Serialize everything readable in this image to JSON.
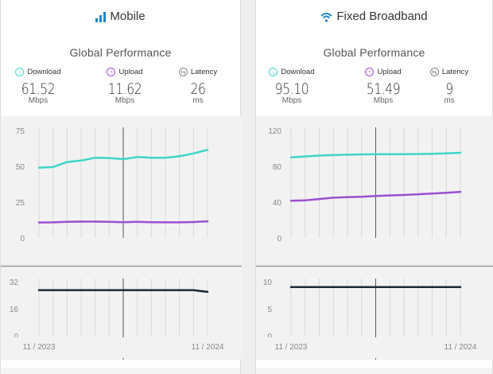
{
  "panels": [
    {
      "title": "Mobile",
      "icon": "signal-bars-icon",
      "subtitle": "Global Performance",
      "metrics": [
        {
          "label": "Download",
          "value": "61.52",
          "unit": "Mbps",
          "color": "#3dd6c8"
        },
        {
          "label": "Upload",
          "value": "11.62",
          "unit": "Mbps",
          "color": "#9b4fd0"
        },
        {
          "label": "Latency",
          "value": "26",
          "unit": "ms",
          "color": "#777777"
        }
      ]
    },
    {
      "title": "Fixed Broadband",
      "icon": "wifi-icon",
      "subtitle": "Global Performance",
      "metrics": [
        {
          "label": "Download",
          "value": "95.10",
          "unit": "Mbps",
          "color": "#3dd6c8"
        },
        {
          "label": "Upload",
          "value": "51.49",
          "unit": "Mbps",
          "color": "#9b4fd0"
        },
        {
          "label": "Latency",
          "value": "9",
          "unit": "ms",
          "color": "#777777"
        }
      ]
    }
  ],
  "chart_data": [
    {
      "type": "line",
      "panel": "Mobile",
      "x": [
        "11/2023",
        "12/2023",
        "01/2024",
        "02/2024",
        "03/2024",
        "04/2024",
        "05/2024",
        "06/2024",
        "07/2024",
        "08/2024",
        "09/2024",
        "10/2024",
        "11/2024"
      ],
      "xtick_labels": [
        "11 / 2023",
        "11 / 2024"
      ],
      "ylim": [
        0,
        75
      ],
      "yticks": [
        "0",
        "25",
        "50",
        "75"
      ],
      "grid": true,
      "cursor_x": "05/2024",
      "series": [
        {
          "name": "Download",
          "color": "#3dd6c8",
          "values": [
            49,
            49.5,
            53,
            54,
            56,
            55.8,
            55,
            56.5,
            56,
            56,
            57,
            59,
            61.5
          ]
        },
        {
          "name": "Upload",
          "color": "#9b4fd0",
          "values": [
            10.8,
            10.9,
            11.3,
            11.4,
            11.4,
            11.2,
            11.0,
            11.3,
            11.0,
            10.9,
            10.9,
            11.1,
            11.6
          ]
        }
      ]
    },
    {
      "type": "line",
      "panel": "Mobile",
      "x": [
        "11/2023",
        "12/2023",
        "01/2024",
        "02/2024",
        "03/2024",
        "04/2024",
        "05/2024",
        "06/2024",
        "07/2024",
        "08/2024",
        "09/2024",
        "10/2024",
        "11/2024"
      ],
      "ylim": [
        0,
        32
      ],
      "yticks": [
        "0",
        "16",
        "32"
      ],
      "grid": true,
      "cursor_x": "05/2024",
      "series": [
        {
          "name": "Latency",
          "color": "#1e2a3a",
          "values": [
            27,
            27,
            27,
            27,
            27,
            27,
            27,
            27,
            27,
            27,
            27,
            27,
            26
          ]
        }
      ]
    },
    {
      "type": "line",
      "panel": "Fixed Broadband",
      "x": [
        "11/2023",
        "12/2023",
        "01/2024",
        "02/2024",
        "03/2024",
        "04/2024",
        "05/2024",
        "06/2024",
        "07/2024",
        "08/2024",
        "09/2024",
        "10/2024",
        "11/2024"
      ],
      "xtick_labels": [
        "11 / 2023",
        "11 / 2024"
      ],
      "ylim": [
        0,
        120
      ],
      "yticks": [
        "0",
        "40",
        "80",
        "120"
      ],
      "grid": true,
      "cursor_x": "05/2024",
      "series": [
        {
          "name": "Download",
          "color": "#3dd6c8",
          "values": [
            90,
            91,
            92,
            92.5,
            93,
            93.3,
            93.5,
            93.5,
            93.5,
            93.7,
            94,
            94.5,
            95.1
          ]
        },
        {
          "name": "Upload",
          "color": "#9b4fd0",
          "values": [
            41.5,
            42,
            43.5,
            45,
            45.5,
            46,
            46.8,
            47.5,
            48,
            48.8,
            49.5,
            50.5,
            51.5
          ]
        }
      ]
    },
    {
      "type": "line",
      "panel": "Fixed Broadband",
      "x": [
        "11/2023",
        "12/2023",
        "01/2024",
        "02/2024",
        "03/2024",
        "04/2024",
        "05/2024",
        "06/2024",
        "07/2024",
        "08/2024",
        "09/2024",
        "10/2024",
        "11/2024"
      ],
      "ylim": [
        0,
        10
      ],
      "yticks": [
        "0",
        "5",
        "10"
      ],
      "grid": true,
      "cursor_x": "05/2024",
      "series": [
        {
          "name": "Latency",
          "color": "#1e2a3a",
          "values": [
            9,
            9,
            9,
            9,
            9,
            9,
            9,
            9,
            9,
            9,
            9,
            9,
            9
          ]
        }
      ]
    }
  ]
}
